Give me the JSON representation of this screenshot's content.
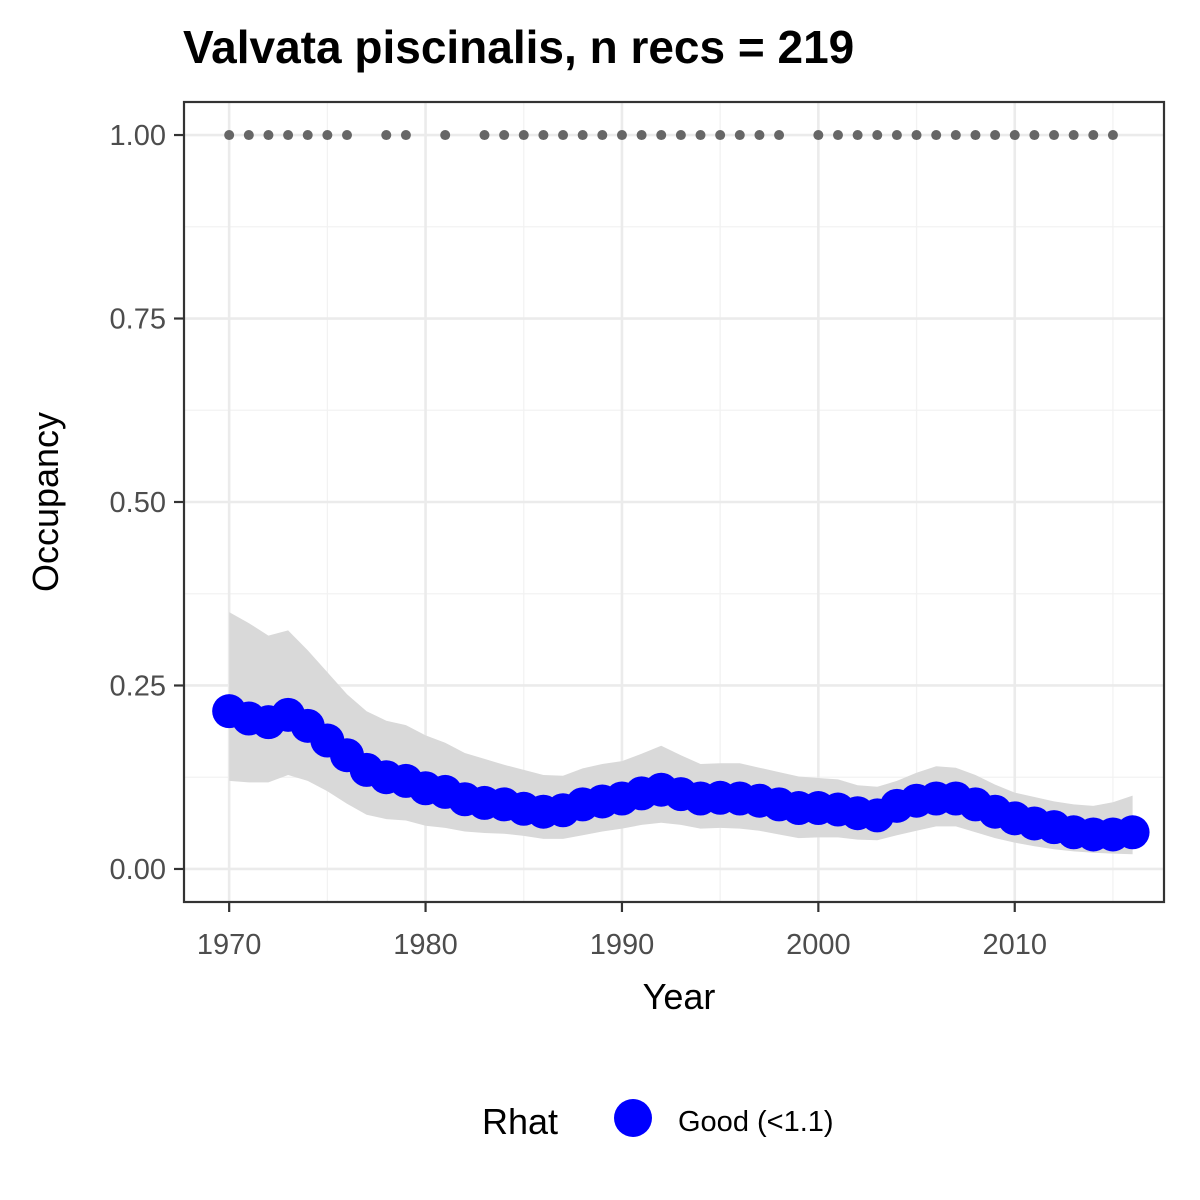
{
  "chart_data": {
    "type": "line",
    "title": "Valvata piscinalis, n recs = 219",
    "xlabel": "Year",
    "ylabel": "Occupancy",
    "xlim": [
      1967.7,
      1917.6
    ],
    "ylim": [
      -0.045,
      1.045
    ],
    "x_ticks": [
      1970,
      1980,
      1990,
      2000,
      2010
    ],
    "x_tick_labels": [
      "1970",
      "1980",
      "1990",
      "2000",
      "2010"
    ],
    "y_ticks": [
      0,
      0.25,
      0.5,
      0.75,
      1.0
    ],
    "y_tick_labels": [
      "0.00",
      "0.25",
      "0.50",
      "0.75",
      "1.00"
    ],
    "grid": true,
    "years": [
      1970,
      1971,
      1972,
      1973,
      1974,
      1975,
      1976,
      1977,
      1978,
      1979,
      1980,
      1981,
      1982,
      1983,
      1984,
      1985,
      1986,
      1987,
      1988,
      1989,
      1990,
      1991,
      1992,
      1993,
      1994,
      1995,
      1996,
      1997,
      1998,
      1999,
      2000,
      2001,
      2002,
      2003,
      2004,
      2005,
      2006,
      2007,
      2008,
      2009,
      2010,
      2011,
      2012,
      2013,
      2014,
      2015,
      2016
    ],
    "occupancy": [
      0.215,
      0.205,
      0.2,
      0.21,
      0.195,
      0.175,
      0.155,
      0.135,
      0.125,
      0.12,
      0.11,
      0.105,
      0.095,
      0.09,
      0.088,
      0.082,
      0.078,
      0.08,
      0.088,
      0.092,
      0.096,
      0.103,
      0.108,
      0.102,
      0.096,
      0.097,
      0.096,
      0.093,
      0.088,
      0.083,
      0.083,
      0.081,
      0.076,
      0.073,
      0.086,
      0.093,
      0.096,
      0.096,
      0.088,
      0.078,
      0.069,
      0.062,
      0.057,
      0.05,
      0.047,
      0.047,
      0.05
    ],
    "ci_upper": [
      0.35,
      0.335,
      0.318,
      0.325,
      0.298,
      0.268,
      0.238,
      0.215,
      0.202,
      0.196,
      0.182,
      0.172,
      0.158,
      0.15,
      0.142,
      0.135,
      0.128,
      0.127,
      0.137,
      0.143,
      0.147,
      0.157,
      0.168,
      0.155,
      0.143,
      0.144,
      0.144,
      0.138,
      0.132,
      0.126,
      0.124,
      0.122,
      0.114,
      0.112,
      0.12,
      0.131,
      0.14,
      0.138,
      0.128,
      0.115,
      0.104,
      0.098,
      0.092,
      0.088,
      0.086,
      0.091,
      0.1
    ],
    "ci_lower": [
      0.12,
      0.118,
      0.118,
      0.128,
      0.12,
      0.106,
      0.089,
      0.074,
      0.068,
      0.066,
      0.059,
      0.056,
      0.051,
      0.049,
      0.048,
      0.045,
      0.041,
      0.041,
      0.046,
      0.051,
      0.055,
      0.06,
      0.063,
      0.06,
      0.055,
      0.056,
      0.055,
      0.052,
      0.047,
      0.042,
      0.043,
      0.043,
      0.04,
      0.039,
      0.046,
      0.052,
      0.058,
      0.058,
      0.05,
      0.042,
      0.036,
      0.031,
      0.027,
      0.024,
      0.022,
      0.021,
      0.02
    ],
    "record_years": [
      1970,
      1971,
      1972,
      1973,
      1974,
      1975,
      1976,
      1978,
      1979,
      1981,
      1983,
      1984,
      1985,
      1986,
      1987,
      1988,
      1989,
      1990,
      1991,
      1992,
      1993,
      1994,
      1995,
      1996,
      1997,
      1998,
      2000,
      2001,
      2002,
      2003,
      2004,
      2005,
      2006,
      2007,
      2008,
      2009,
      2010,
      2011,
      2012,
      2013,
      2014,
      2015
    ],
    "record_value": 1.0,
    "series": [
      {
        "name": "Good (<1.1)",
        "color": "#0000ff"
      }
    ],
    "ribbon_color": "#cccccc",
    "record_color": "#666666",
    "legend": {
      "title": "Rhat",
      "position": "bottom",
      "entries": [
        {
          "label": "Good (<1.1)",
          "color": "#0000ff"
        }
      ]
    }
  }
}
